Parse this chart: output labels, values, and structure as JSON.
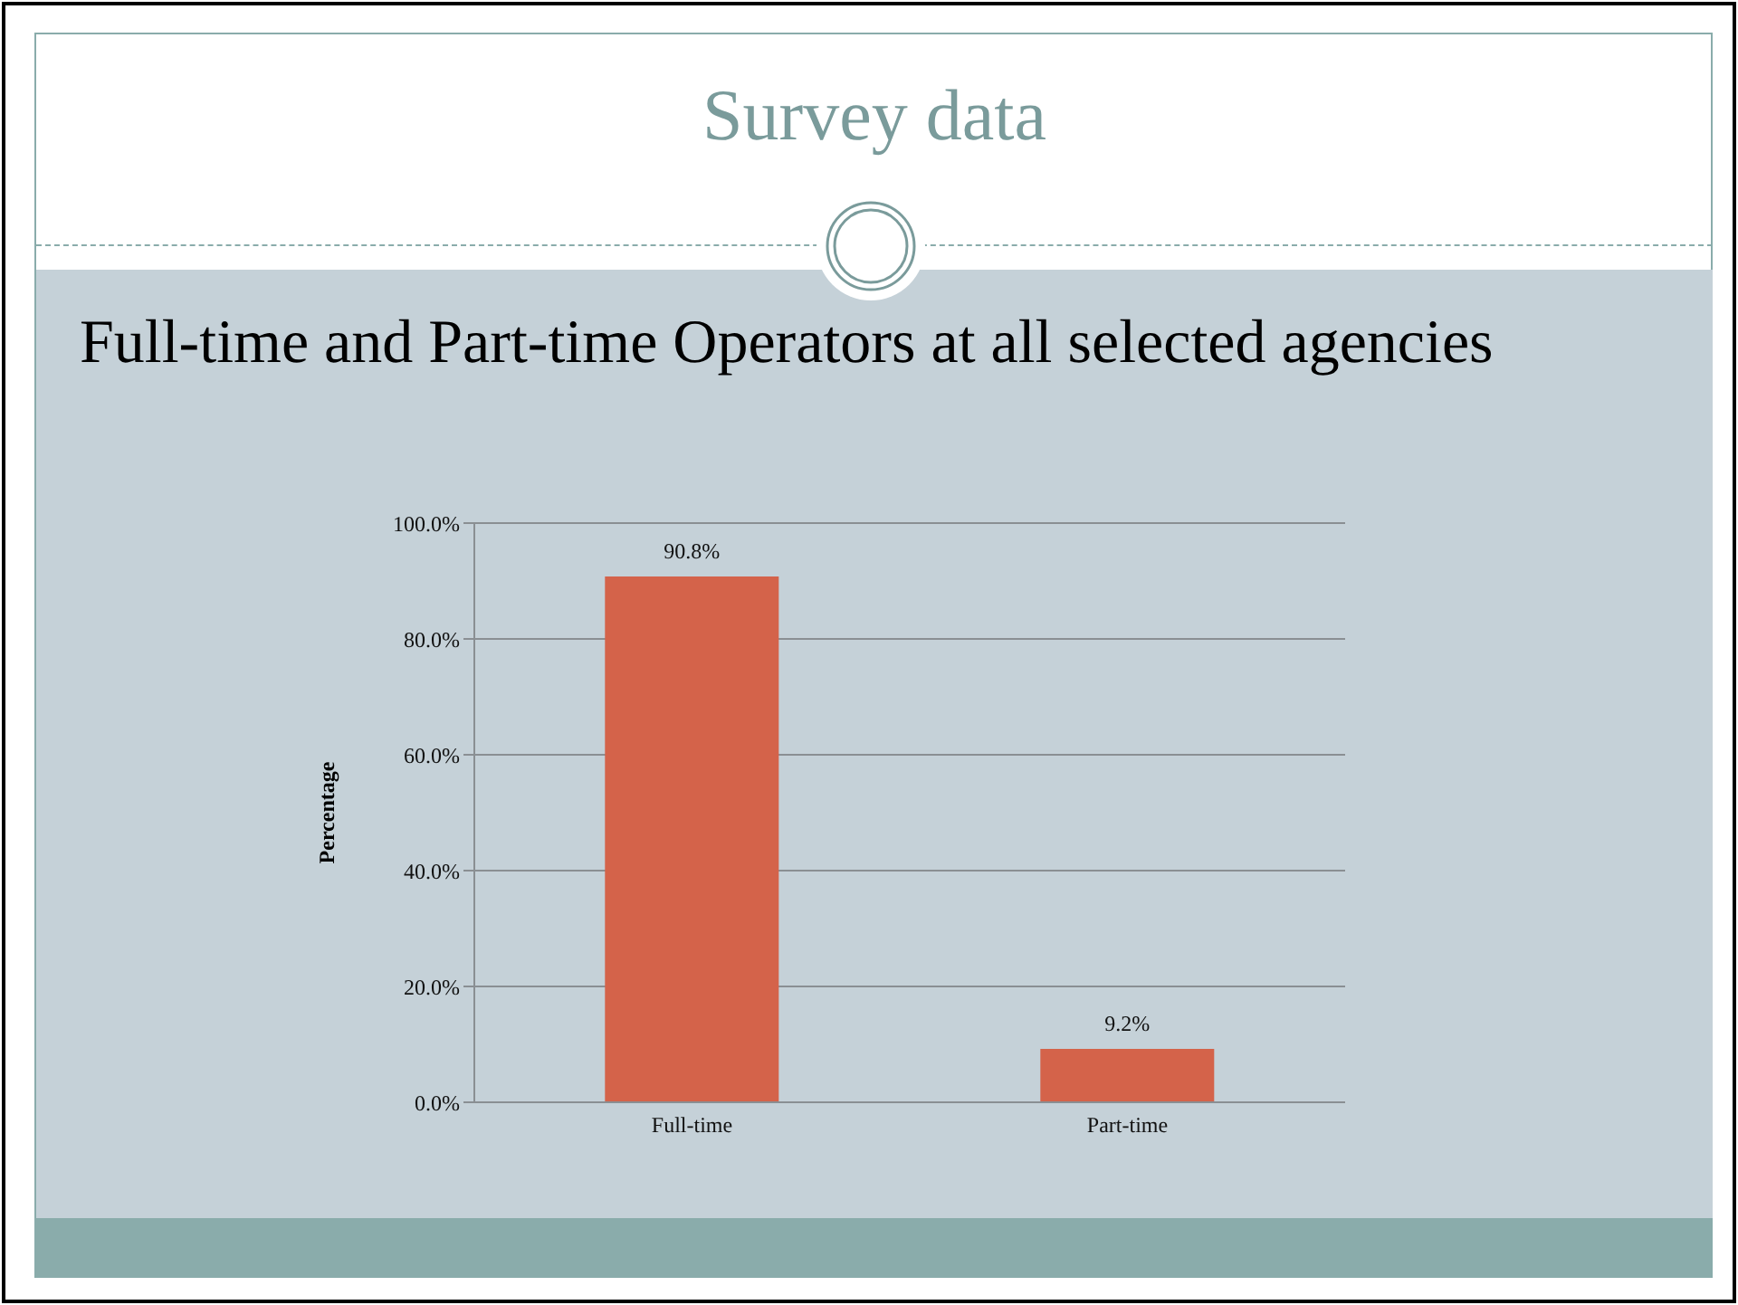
{
  "chart_data": {
    "type": "bar",
    "title": "Survey data",
    "subtitle": "Full-time and Part-time Operators at all selected agencies",
    "ylabel": "Percentage",
    "categories": [
      "Full-time",
      "Part-time"
    ],
    "values": [
      90.8,
      9.2
    ],
    "color": "#d4634a",
    "value_labels": [
      "90.8%",
      "9.2%"
    ],
    "ylim": [
      0,
      100
    ],
    "yticks": [
      {
        "value": 0,
        "label": "0.0%"
      },
      {
        "value": 20,
        "label": "20.0%"
      },
      {
        "value": 40,
        "label": "40.0%"
      },
      {
        "value": 60,
        "label": "60.0%"
      },
      {
        "value": 80,
        "label": "80.0%"
      },
      {
        "value": 100,
        "label": "100.0%"
      }
    ],
    "grid": "y"
  }
}
